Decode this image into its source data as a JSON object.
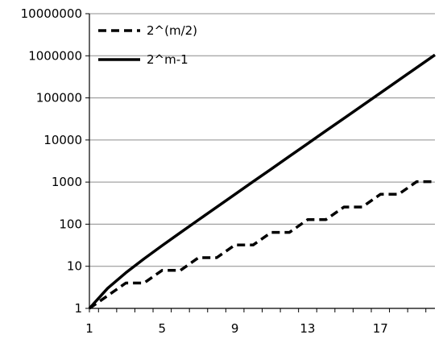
{
  "chart_data": {
    "type": "line",
    "title": "",
    "xlabel": "",
    "ylabel": "",
    "x": [
      1,
      2,
      3,
      4,
      5,
      6,
      7,
      8,
      9,
      10,
      11,
      12,
      13,
      14,
      15,
      16,
      17,
      18,
      19,
      20
    ],
    "xlim": [
      1,
      20
    ],
    "xticks": [
      1,
      5,
      9,
      13,
      17
    ],
    "xtick_labels": [
      "1",
      "5",
      "9",
      "13",
      "17"
    ],
    "yscale": "log",
    "ylim": [
      1,
      10000000
    ],
    "yticks": [
      1,
      10,
      100,
      1000,
      10000,
      100000,
      1000000,
      10000000
    ],
    "ytick_labels": [
      "1",
      "10",
      "100",
      "1000",
      "10000",
      "100000",
      "1000000",
      "10000000"
    ],
    "grid": "horizontal",
    "legend": "top-left",
    "series": [
      {
        "name": "2^(m/2)",
        "style": "dashed",
        "color": "#000000",
        "values": [
          1,
          2,
          4,
          4,
          8,
          8,
          16,
          16,
          32,
          32,
          64,
          64,
          128,
          128,
          256,
          256,
          512,
          512,
          1024,
          1024
        ]
      },
      {
        "name": "2^m-1",
        "style": "solid",
        "color": "#000000",
        "values": [
          1,
          3,
          7,
          15,
          31,
          63,
          127,
          255,
          511,
          1023,
          2047,
          4095,
          8191,
          16383,
          32767,
          65535,
          131071,
          262143,
          524287,
          1048575
        ]
      }
    ]
  }
}
